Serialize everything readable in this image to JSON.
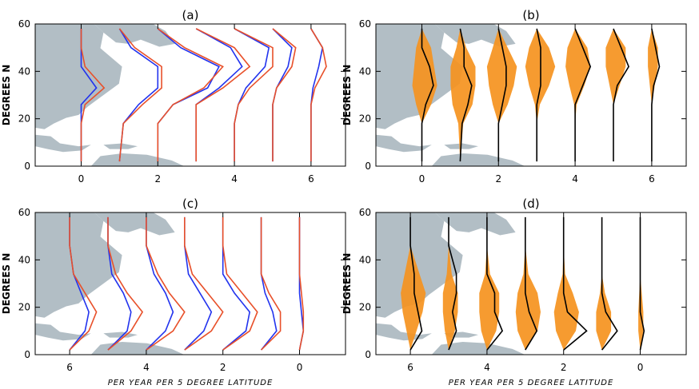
{
  "colors": {
    "land": "#b2bec5",
    "blue": "#2233ee",
    "red": "#e8502a",
    "fill": "#f5931e",
    "black": "#000000"
  },
  "chart_data": [
    {
      "type": "line",
      "title": "(a)",
      "ylabel": "DEGREES N",
      "xlabel": "",
      "x_ticks": [
        "0",
        "2",
        "4",
        "6"
      ],
      "y_ticks": [
        "0",
        "20",
        "40",
        "60"
      ],
      "xlim": [
        -1.2,
        6.9
      ],
      "ylim": [
        0,
        60
      ],
      "series": [
        {
          "color": "blue",
          "offsets": [
            0,
            1,
            2,
            3,
            4,
            5,
            6
          ],
          "lat": [
            2,
            18,
            26,
            33,
            42,
            50,
            58
          ],
          "values": [
            [
              0,
              0,
              0,
              0.4,
              0,
              0,
              0
            ],
            [
              0,
              0.1,
              0.5,
              1.0,
              1.0,
              0.3,
              0
            ],
            [
              0,
              0,
              0.4,
              1.3,
              1.6,
              0.6,
              0
            ],
            [
              0,
              0,
              0,
              0.6,
              1.2,
              0.9,
              0
            ],
            [
              0,
              0,
              0.1,
              0.3,
              0.8,
              0.9,
              0
            ],
            [
              0,
              0,
              0,
              0.1,
              0.4,
              0.5,
              0
            ],
            [
              0,
              0,
              0,
              0.05,
              0.2,
              0.3,
              0
            ]
          ]
        },
        {
          "color": "red",
          "offsets": [
            0,
            1,
            2,
            3,
            4,
            5,
            6
          ],
          "lat": [
            2,
            18,
            26,
            33,
            42,
            50,
            58
          ],
          "values": [
            [
              0,
              0,
              0.1,
              0.6,
              0.1,
              0,
              0
            ],
            [
              0,
              0.1,
              0.6,
              1.1,
              1.1,
              0.4,
              0
            ],
            [
              0,
              0,
              0.4,
              1.2,
              1.7,
              0.7,
              0
            ],
            [
              0,
              0,
              0,
              0.7,
              1.4,
              1.0,
              0
            ],
            [
              0,
              0,
              0.1,
              0.4,
              1.0,
              1.0,
              0
            ],
            [
              0,
              0,
              0,
              0.1,
              0.5,
              0.6,
              0
            ],
            [
              0,
              0,
              0,
              0.1,
              0.4,
              0.3,
              0
            ]
          ]
        }
      ]
    },
    {
      "type": "area",
      "title": "(b)",
      "ylabel": "DEGREES N",
      "xlabel": "",
      "x_ticks": [
        "0",
        "2",
        "4",
        "6"
      ],
      "y_ticks": [
        "0",
        "20",
        "40",
        "60"
      ],
      "xlim": [
        -1.2,
        6.9
      ],
      "ylim": [
        0,
        60
      ],
      "fill_widths": [
        [
          0,
          0,
          0.3,
          0.5,
          0.4,
          0.3,
          0
        ],
        [
          0,
          0.1,
          0.4,
          0.5,
          0.5,
          0.2,
          0
        ],
        [
          0,
          0,
          0.3,
          0.5,
          0.6,
          0.3,
          0
        ],
        [
          0,
          0,
          0.1,
          0.4,
          0.6,
          0.4,
          0
        ],
        [
          0,
          0,
          0.05,
          0.3,
          0.5,
          0.4,
          0
        ],
        [
          0,
          0,
          0,
          0.2,
          0.4,
          0.4,
          0
        ],
        [
          0,
          0,
          0,
          0.1,
          0.2,
          0.2,
          0
        ]
      ],
      "lines": [
        [
          0,
          0,
          0.1,
          0.3,
          0.2,
          0,
          0
        ],
        [
          0,
          0.05,
          0.2,
          0.3,
          0.1,
          0.1,
          0
        ],
        [
          0,
          0,
          0.1,
          0.2,
          0.2,
          0.1,
          0
        ],
        [
          0,
          0,
          0,
          0.1,
          0.1,
          0.1,
          0
        ],
        [
          0,
          0,
          0,
          0.2,
          0.4,
          0.2,
          0
        ],
        [
          0,
          0,
          0,
          0.1,
          0.4,
          0.2,
          0
        ],
        [
          0,
          0,
          0,
          0.05,
          0.2,
          0.1,
          0
        ]
      ],
      "lat": [
        2,
        18,
        26,
        34,
        42,
        50,
        58
      ],
      "offsets": [
        0,
        1,
        2,
        3,
        4,
        5,
        6
      ]
    },
    {
      "type": "line",
      "title": "(c)",
      "ylabel": "DEGREES N",
      "xlabel": "PER YEAR PER 5 DEGREE LATITUDE",
      "x_ticks": [
        "6",
        "4",
        "2",
        "0"
      ],
      "y_ticks": [
        "0",
        "20",
        "40",
        "60"
      ],
      "xlim": [
        6.9,
        -1.2
      ],
      "ylim": [
        0,
        60
      ],
      "series": [
        {
          "color": "blue",
          "offsets": [
            6,
            5,
            4,
            3,
            2,
            1,
            0
          ],
          "lat": [
            2,
            10,
            18,
            26,
            34,
            46,
            58
          ],
          "values": [
            [
              0,
              0.4,
              0.5,
              0.3,
              0.1,
              0,
              0
            ],
            [
              0,
              0.5,
              0.6,
              0.4,
              0.1,
              0,
              0
            ],
            [
              0,
              0.5,
              0.7,
              0.5,
              0.2,
              0,
              0
            ],
            [
              0,
              0.5,
              0.7,
              0.4,
              0.1,
              0,
              0
            ],
            [
              0,
              0.6,
              0.7,
              0.3,
              0,
              0,
              0
            ],
            [
              0,
              0.4,
              0.3,
              0.1,
              0,
              0,
              0
            ],
            [
              0,
              0.1,
              0.05,
              0,
              0,
              0,
              0
            ]
          ]
        },
        {
          "color": "red",
          "offsets": [
            6,
            5,
            4,
            3,
            2,
            1,
            0
          ],
          "lat": [
            2,
            10,
            18,
            26,
            34,
            46,
            58
          ],
          "values": [
            [
              0,
              0.5,
              0.7,
              0.4,
              0.1,
              0,
              0
            ],
            [
              0,
              0.6,
              0.9,
              0.5,
              0.2,
              0,
              0
            ],
            [
              0,
              0.7,
              1.0,
              0.6,
              0.3,
              0,
              0
            ],
            [
              0,
              0.7,
              1.0,
              0.6,
              0.2,
              0,
              0
            ],
            [
              0,
              0.7,
              0.9,
              0.5,
              0.1,
              0,
              0
            ],
            [
              0,
              0.5,
              0.5,
              0.2,
              0,
              0,
              0
            ],
            [
              0,
              0.1,
              0.1,
              0.05,
              0,
              0,
              0
            ]
          ]
        }
      ]
    },
    {
      "type": "area",
      "title": "(d)",
      "ylabel": "DEGREES N",
      "xlabel": "PER YEAR PER 5 DEGREE LATITUDE",
      "x_ticks": [
        "6",
        "4",
        "2",
        "0"
      ],
      "y_ticks": [
        "0",
        "20",
        "40",
        "60"
      ],
      "xlim": [
        6.9,
        -1.2
      ],
      "ylim": [
        0,
        60
      ],
      "fill_widths": [
        [
          0,
          0.2,
          0.4,
          0.5,
          0.3,
          0,
          0
        ],
        [
          0,
          0.2,
          0.3,
          0.3,
          0.1,
          0,
          0
        ],
        [
          0,
          0.3,
          0.4,
          0.4,
          0.1,
          0,
          0
        ],
        [
          0,
          0.4,
          0.5,
          0.4,
          0.1,
          0,
          0
        ],
        [
          0,
          0.4,
          0.5,
          0.3,
          0.05,
          0,
          0
        ],
        [
          0,
          0.3,
          0.3,
          0.1,
          0,
          0,
          0
        ],
        [
          0,
          0.1,
          0.1,
          0.05,
          0,
          0,
          0
        ]
      ],
      "lines": [
        [
          0,
          0.3,
          0.2,
          0.1,
          0.1,
          0,
          0
        ],
        [
          0,
          0.2,
          0.1,
          0.2,
          0.2,
          0,
          0
        ],
        [
          0,
          0.4,
          0.2,
          0.2,
          0,
          0,
          0
        ],
        [
          0,
          0.3,
          0.1,
          0,
          0,
          0,
          0
        ],
        [
          0,
          0.6,
          0.1,
          0,
          0,
          0,
          0
        ],
        [
          0,
          0.4,
          0.1,
          0,
          0,
          0,
          0
        ],
        [
          0,
          0.1,
          0,
          0,
          0,
          0,
          0
        ]
      ],
      "lat": [
        2,
        10,
        18,
        26,
        34,
        46,
        58
      ],
      "offsets": [
        6,
        5,
        4,
        3,
        2,
        1,
        0
      ]
    }
  ]
}
